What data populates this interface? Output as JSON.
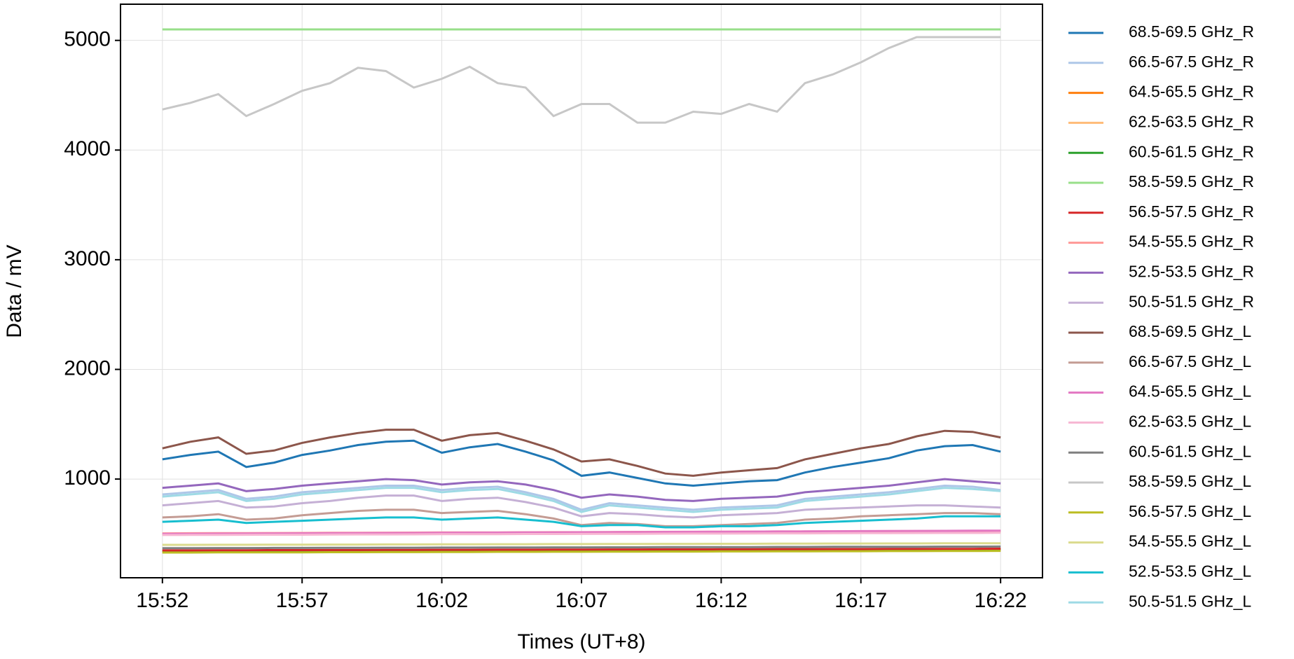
{
  "chart_data": {
    "type": "line",
    "x_label": "Times (UT+8)",
    "y_label": "Data / mV",
    "x": [
      "15:52",
      "15:53",
      "15:54",
      "15:55",
      "15:56",
      "15:57",
      "15:58",
      "15:59",
      "16:00",
      "16:01",
      "16:02",
      "16:03",
      "16:04",
      "16:05",
      "16:06",
      "16:07",
      "16:08",
      "16:09",
      "16:10",
      "16:11",
      "16:12",
      "16:13",
      "16:14",
      "16:15",
      "16:16",
      "16:17",
      "16:18",
      "16:19",
      "16:20",
      "16:21",
      "16:22"
    ],
    "xticks": [
      "15:52",
      "15:57",
      "16:02",
      "16:07",
      "16:12",
      "16:17",
      "16:22"
    ],
    "ylim": [
      100,
      5330
    ],
    "yticks": [
      1000,
      2000,
      3000,
      4000,
      5000
    ],
    "grid": true,
    "legend": "outside-right",
    "series": [
      {
        "name": "68.5-69.5 GHz_R",
        "color": "#1f77b4",
        "values": [
          1180,
          1220,
          1250,
          1110,
          1150,
          1220,
          1260,
          1310,
          1340,
          1350,
          1240,
          1290,
          1320,
          1250,
          1170,
          1030,
          1060,
          1010,
          960,
          940,
          960,
          980,
          990,
          1060,
          1110,
          1150,
          1190,
          1260,
          1300,
          1310,
          1250
        ]
      },
      {
        "name": "66.5-67.5 GHz_R",
        "color": "#aec7e8",
        "values": [
          860,
          880,
          900,
          820,
          840,
          880,
          900,
          920,
          940,
          940,
          900,
          920,
          930,
          880,
          820,
          720,
          780,
          760,
          740,
          720,
          740,
          750,
          760,
          820,
          840,
          860,
          880,
          910,
          940,
          930,
          900
        ]
      },
      {
        "name": "64.5-65.5 GHz_R",
        "color": "#ff7f0e",
        "values": [
          335,
          335,
          336,
          336,
          337,
          337,
          338,
          338,
          339,
          339,
          340,
          340,
          341,
          341,
          342,
          342,
          343,
          343,
          344,
          344,
          345,
          345,
          346,
          346,
          347,
          347,
          348,
          348,
          349,
          349,
          350
        ]
      },
      {
        "name": "62.5-63.5 GHz_R",
        "color": "#ffbb78",
        "values": [
          495,
          496,
          497,
          497,
          498,
          499,
          500,
          500,
          501,
          502,
          503,
          503,
          504,
          505,
          506,
          506,
          507,
          508,
          509,
          509,
          510,
          511,
          512,
          512,
          513,
          514,
          515,
          515,
          516,
          517,
          518
        ]
      },
      {
        "name": "60.5-61.5 GHz_R",
        "color": "#2ca02c",
        "values": [
          345,
          345,
          346,
          346,
          347,
          347,
          348,
          348,
          349,
          349,
          350,
          350,
          351,
          351,
          352,
          352,
          353,
          353,
          354,
          354,
          355,
          355,
          356,
          356,
          357,
          357,
          358,
          358,
          359,
          359,
          360
        ]
      },
      {
        "name": "58.5-59.5 GHz_R",
        "color": "#98df8a",
        "values": [
          5100,
          5100,
          5100,
          5100,
          5100,
          5100,
          5100,
          5100,
          5100,
          5100,
          5100,
          5100,
          5100,
          5100,
          5100,
          5100,
          5100,
          5100,
          5100,
          5100,
          5100,
          5100,
          5100,
          5100,
          5100,
          5100,
          5100,
          5100,
          5100,
          5100,
          5100
        ]
      },
      {
        "name": "56.5-57.5 GHz_R",
        "color": "#d62728",
        "values": [
          350,
          350,
          351,
          351,
          352,
          352,
          353,
          353,
          354,
          354,
          355,
          355,
          356,
          356,
          357,
          357,
          358,
          358,
          359,
          359,
          360,
          360,
          361,
          361,
          362,
          362,
          363,
          363,
          364,
          364,
          365
        ]
      },
      {
        "name": "54.5-55.5 GHz_R",
        "color": "#ff9896",
        "values": [
          505,
          506,
          507,
          507,
          508,
          509,
          510,
          510,
          511,
          512,
          513,
          513,
          514,
          515,
          516,
          516,
          517,
          518,
          519,
          519,
          520,
          521,
          522,
          522,
          523,
          524,
          525,
          525,
          526,
          527,
          528
        ]
      },
      {
        "name": "52.5-53.5 GHz_R",
        "color": "#9467bd",
        "values": [
          920,
          940,
          960,
          890,
          910,
          940,
          960,
          980,
          1000,
          990,
          950,
          970,
          980,
          950,
          900,
          830,
          860,
          840,
          810,
          800,
          820,
          830,
          840,
          880,
          900,
          920,
          940,
          970,
          1000,
          980,
          960
        ]
      },
      {
        "name": "50.5-51.5 GHz_R",
        "color": "#c5b0d5",
        "values": [
          760,
          780,
          800,
          740,
          750,
          780,
          800,
          830,
          850,
          850,
          800,
          820,
          830,
          790,
          740,
          660,
          690,
          680,
          660,
          650,
          670,
          680,
          690,
          720,
          730,
          740,
          750,
          760,
          760,
          750,
          740
        ]
      },
      {
        "name": "68.5-69.5 GHz_L",
        "color": "#8c564b",
        "values": [
          1280,
          1340,
          1380,
          1230,
          1260,
          1330,
          1380,
          1420,
          1450,
          1450,
          1350,
          1400,
          1420,
          1350,
          1270,
          1160,
          1180,
          1120,
          1050,
          1030,
          1060,
          1080,
          1100,
          1180,
          1230,
          1280,
          1320,
          1390,
          1440,
          1430,
          1380
        ]
      },
      {
        "name": "66.5-67.5 GHz_L",
        "color": "#c49c94",
        "values": [
          650,
          660,
          680,
          630,
          640,
          670,
          690,
          710,
          720,
          720,
          690,
          700,
          710,
          680,
          640,
          580,
          600,
          590,
          570,
          570,
          580,
          590,
          600,
          630,
          640,
          660,
          670,
          680,
          690,
          690,
          680
        ]
      },
      {
        "name": "64.5-65.5 GHz_L",
        "color": "#e377c2",
        "values": [
          500,
          501,
          502,
          503,
          504,
          505,
          506,
          507,
          508,
          509,
          510,
          511,
          512,
          513,
          514,
          515,
          516,
          517,
          518,
          519,
          520,
          521,
          522,
          523,
          524,
          525,
          526,
          527,
          528,
          529,
          530
        ]
      },
      {
        "name": "62.5-63.5 GHz_L",
        "color": "#f7b6d2",
        "values": [
          490,
          491,
          491,
          492,
          493,
          493,
          494,
          495,
          495,
          496,
          497,
          497,
          498,
          499,
          499,
          500,
          501,
          501,
          502,
          503,
          503,
          504,
          505,
          505,
          506,
          507,
          507,
          508,
          509,
          509,
          510
        ]
      },
      {
        "name": "60.5-61.5 GHz_L",
        "color": "#7f7f7f",
        "values": [
          370,
          370,
          371,
          371,
          372,
          372,
          373,
          373,
          374,
          374,
          375,
          375,
          376,
          376,
          377,
          377,
          378,
          378,
          379,
          379,
          380,
          380,
          381,
          381,
          382,
          382,
          383,
          383,
          384,
          384,
          385
        ]
      },
      {
        "name": "58.5-59.5 GHz_L",
        "color": "#c7c7c7",
        "values": [
          4370,
          4430,
          4510,
          4310,
          4420,
          4540,
          4610,
          4750,
          4720,
          4570,
          4650,
          4760,
          4610,
          4570,
          4310,
          4420,
          4420,
          4250,
          4250,
          4350,
          4330,
          4420,
          4350,
          4610,
          4690,
          4800,
          4930,
          5030,
          5030,
          5030,
          5030
        ]
      },
      {
        "name": "56.5-57.5 GHz_L",
        "color": "#bcbd22",
        "values": [
          330,
          330,
          331,
          331,
          332,
          332,
          333,
          333,
          334,
          334,
          335,
          335,
          336,
          336,
          337,
          337,
          338,
          338,
          339,
          339,
          340,
          340,
          341,
          341,
          342,
          342,
          343,
          343,
          344,
          344,
          345
        ]
      },
      {
        "name": "54.5-55.5 GHz_L",
        "color": "#dbdb8d",
        "values": [
          400,
          400,
          401,
          401,
          402,
          402,
          403,
          403,
          404,
          404,
          405,
          405,
          406,
          406,
          407,
          407,
          408,
          408,
          409,
          409,
          410,
          410,
          411,
          411,
          412,
          412,
          413,
          413,
          414,
          414,
          415
        ]
      },
      {
        "name": "52.5-53.5 GHz_L",
        "color": "#17becf",
        "values": [
          610,
          620,
          630,
          600,
          610,
          620,
          630,
          640,
          650,
          650,
          630,
          640,
          650,
          630,
          610,
          570,
          580,
          580,
          560,
          560,
          570,
          570,
          580,
          600,
          610,
          620,
          630,
          640,
          660,
          660,
          660
        ]
      },
      {
        "name": "50.5-51.5 GHz_L",
        "color": "#9edae5",
        "values": [
          840,
          860,
          880,
          800,
          820,
          860,
          880,
          900,
          920,
          920,
          880,
          900,
          910,
          860,
          800,
          700,
          760,
          740,
          720,
          700,
          720,
          730,
          740,
          800,
          820,
          840,
          860,
          890,
          920,
          910,
          890
        ]
      }
    ]
  }
}
